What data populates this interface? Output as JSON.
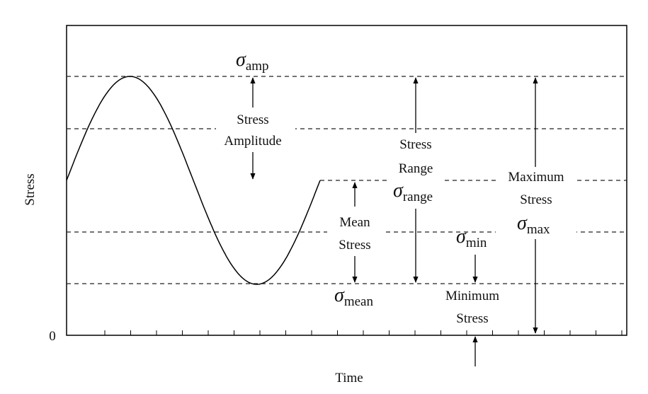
{
  "axes": {
    "y_label": "Stress",
    "x_label": "Time",
    "zero_label": "0"
  },
  "annotations": {
    "amp": {
      "symbol": "σ",
      "sub": "amp",
      "line1": "Stress",
      "line2": "Amplitude"
    },
    "mean": {
      "line1": "Mean",
      "line2": "Stress",
      "symbol": "σ",
      "sub": "mean"
    },
    "range": {
      "line1": "Stress",
      "line2": "Range",
      "symbol": "σ",
      "sub": "range"
    },
    "min": {
      "symbol": "σ",
      "sub": "min",
      "line1": "Minimum",
      "line2": "Stress"
    },
    "max": {
      "line1": "Maximum",
      "line2": "Stress",
      "symbol": "σ",
      "sub": "max"
    }
  },
  "colors": {
    "line": "#000000",
    "dash": "#222222",
    "background": "#ffffff"
  }
}
